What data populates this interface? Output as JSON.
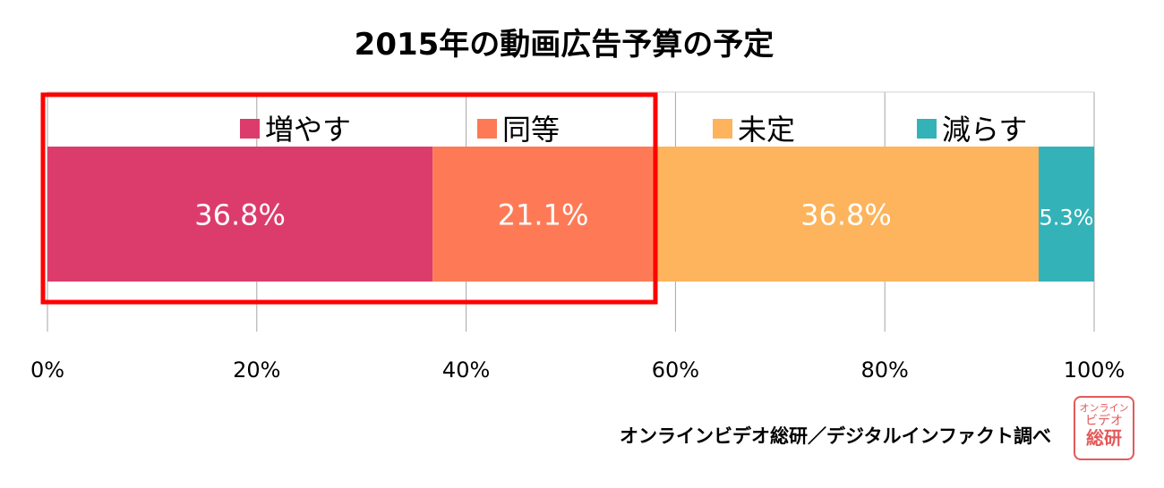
{
  "chart_data": {
    "type": "bar",
    "orientation": "horizontal",
    "stacked": true,
    "title": "2015年の動画広告予算の予定",
    "xlim": [
      0,
      100
    ],
    "x_ticks": [
      "0%",
      "20%",
      "40%",
      "60%",
      "80%",
      "100%"
    ],
    "series": [
      {
        "name": "増やす",
        "value": 36.8,
        "label": "36.8%",
        "color": "#dc3c6c"
      },
      {
        "name": "同等",
        "value": 21.1,
        "label": "21.1%",
        "color": "#fe7a56"
      },
      {
        "name": "未定",
        "value": 36.8,
        "label": "36.8%",
        "color": "#fdb45c"
      },
      {
        "name": "減らす",
        "value": 5.3,
        "label": "5.3%",
        "color": "#33b2b8"
      }
    ],
    "grid": true,
    "legend_position": "top",
    "highlight": {
      "color": "#ff0000",
      "covers": [
        "増やす",
        "同等"
      ]
    }
  },
  "source": "オンラインビデオ総研／デジタルインファクト調べ",
  "seal": {
    "line1": "オンライン",
    "line2": "ビデオ",
    "line3": "総研"
  }
}
